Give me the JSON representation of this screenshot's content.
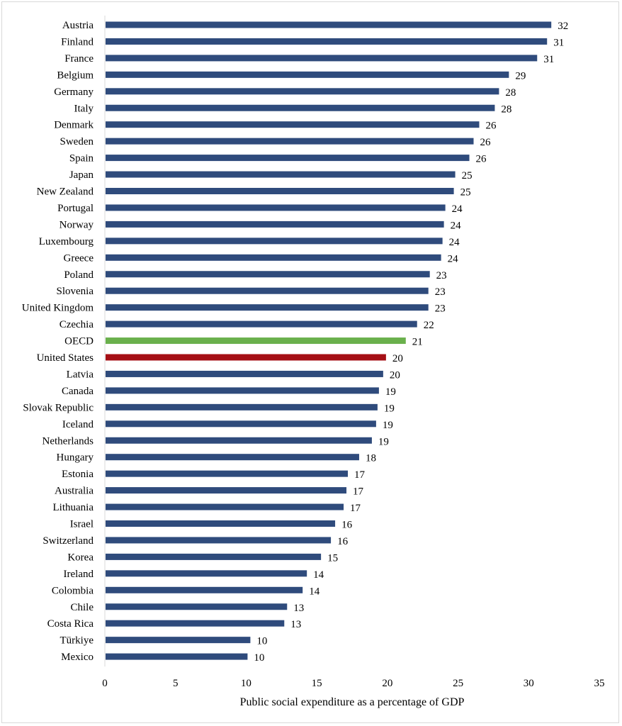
{
  "chart_data": {
    "type": "bar",
    "orientation": "horizontal",
    "title": "",
    "xlabel": "Public social expenditure as a percentage of GDP",
    "ylabel": "",
    "xlim": [
      0,
      35
    ],
    "xticks": [
      0,
      5,
      10,
      15,
      20,
      25,
      30,
      35
    ],
    "grid": false,
    "legend": "none",
    "colors": {
      "default": "#2f4b7c",
      "OECD": "#6ab04c",
      "United States": "#a50f15"
    },
    "categories": [
      "Austria",
      "Finland",
      "France",
      "Belgium",
      "Germany",
      "Italy",
      "Denmark",
      "Sweden",
      "Spain",
      "Japan",
      "New Zealand",
      "Portugal",
      "Norway",
      "Luxembourg",
      "Greece",
      "Poland",
      "Slovenia",
      "United Kingdom",
      "Czechia",
      "OECD",
      "United States",
      "Latvia",
      "Canada",
      "Slovak Republic",
      "Iceland",
      "Netherlands",
      "Hungary",
      "Estonia",
      "Australia",
      "Lithuania",
      "Israel",
      "Switzerland",
      "Korea",
      "Ireland",
      "Colombia",
      "Chile",
      "Costa Rica",
      "Türkiye",
      "Mexico"
    ],
    "values": [
      31.6,
      31.3,
      30.6,
      28.6,
      27.9,
      27.6,
      26.5,
      26.1,
      25.8,
      24.8,
      24.7,
      24.1,
      24.0,
      23.9,
      23.8,
      23.0,
      22.9,
      22.9,
      22.1,
      21.3,
      19.9,
      19.7,
      19.4,
      19.3,
      19.2,
      18.9,
      18.0,
      17.2,
      17.1,
      16.9,
      16.3,
      16.0,
      15.3,
      14.3,
      14.0,
      12.9,
      12.7,
      10.3,
      10.1
    ],
    "labels": [
      "32",
      "31",
      "31",
      "29",
      "28",
      "28",
      "26",
      "26",
      "26",
      "25",
      "25",
      "24",
      "24",
      "24",
      "24",
      "23",
      "23",
      "23",
      "22",
      "21",
      "20",
      "20",
      "19",
      "19",
      "19",
      "19",
      "18",
      "17",
      "17",
      "17",
      "16",
      "16",
      "15",
      "14",
      "14",
      "13",
      "13",
      "10",
      "10"
    ]
  }
}
